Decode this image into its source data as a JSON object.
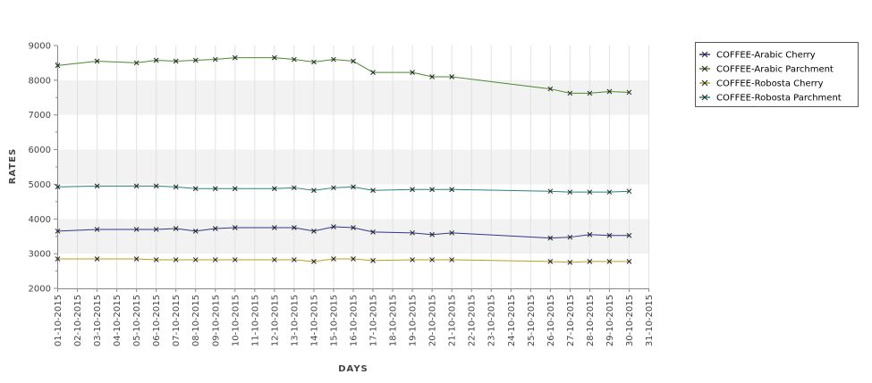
{
  "chart_data": {
    "type": "line",
    "xlabel": "DAYS",
    "ylabel": "RATES",
    "ylim": [
      2000,
      9000
    ],
    "yticks": [
      "2000",
      "3000",
      "4000",
      "5000",
      "6000",
      "7000",
      "8000",
      "9000"
    ],
    "grid": true,
    "legend": "top-right",
    "x_ticks": [
      "01-10-2015",
      "02-10-2015",
      "03-10-2015",
      "04-10-2015",
      "05-10-2015",
      "06-10-2015",
      "07-10-2015",
      "08-10-2015",
      "09-10-2015",
      "10-10-2015",
      "11-10-2015",
      "12-10-2015",
      "13-10-2015",
      "14-10-2015",
      "15-10-2015",
      "16-10-2015",
      "17-10-2015",
      "18-10-2015",
      "19-10-2015",
      "20-10-2015",
      "21-10-2015",
      "22-10-2015",
      "23-10-2015",
      "24-10-2015",
      "25-10-2015",
      "26-10-2015",
      "27-10-2015",
      "28-10-2015",
      "29-10-2015",
      "30-10-2015",
      "31-10-2015"
    ],
    "series": [
      {
        "name": "COFFEE-Arabic Cherry",
        "color": "#2b3a8c",
        "x": [
          "01-10-2015",
          "03-10-2015",
          "05-10-2015",
          "06-10-2015",
          "07-10-2015",
          "08-10-2015",
          "09-10-2015",
          "10-10-2015",
          "12-10-2015",
          "13-10-2015",
          "14-10-2015",
          "15-10-2015",
          "16-10-2015",
          "17-10-2015",
          "19-10-2015",
          "20-10-2015",
          "21-10-2015",
          "26-10-2015",
          "27-10-2015",
          "28-10-2015",
          "29-10-2015",
          "30-10-2015"
        ],
        "values": [
          3650,
          3700,
          3700,
          3700,
          3725,
          3650,
          3725,
          3750,
          3750,
          3750,
          3650,
          3775,
          3750,
          3625,
          3600,
          3550,
          3600,
          3450,
          3475,
          3550,
          3525,
          3525
        ]
      },
      {
        "name": "COFFEE-Arabic Parchment",
        "color": "#4a8a2a",
        "x": [
          "01-10-2015",
          "03-10-2015",
          "05-10-2015",
          "06-10-2015",
          "07-10-2015",
          "08-10-2015",
          "09-10-2015",
          "10-10-2015",
          "12-10-2015",
          "13-10-2015",
          "14-10-2015",
          "15-10-2015",
          "16-10-2015",
          "17-10-2015",
          "19-10-2015",
          "20-10-2015",
          "21-10-2015",
          "26-10-2015",
          "27-10-2015",
          "28-10-2015",
          "29-10-2015",
          "30-10-2015"
        ],
        "values": [
          8425,
          8550,
          8500,
          8575,
          8550,
          8575,
          8600,
          8650,
          8650,
          8600,
          8525,
          8600,
          8550,
          8225,
          8225,
          8100,
          8100,
          7750,
          7625,
          7625,
          7675,
          7650
        ]
      },
      {
        "name": "COFFEE-Robosta Cherry",
        "color": "#b8a020",
        "x": [
          "01-10-2015",
          "03-10-2015",
          "05-10-2015",
          "06-10-2015",
          "07-10-2015",
          "08-10-2015",
          "09-10-2015",
          "10-10-2015",
          "12-10-2015",
          "13-10-2015",
          "14-10-2015",
          "15-10-2015",
          "16-10-2015",
          "17-10-2015",
          "19-10-2015",
          "20-10-2015",
          "21-10-2015",
          "26-10-2015",
          "27-10-2015",
          "28-10-2015",
          "29-10-2015",
          "30-10-2015"
        ],
        "values": [
          2850,
          2850,
          2850,
          2825,
          2825,
          2825,
          2825,
          2825,
          2825,
          2825,
          2775,
          2850,
          2850,
          2800,
          2825,
          2825,
          2825,
          2775,
          2750,
          2775,
          2775,
          2775
        ]
      },
      {
        "name": "COFFEE-Robosta Parchment",
        "color": "#2a8080",
        "x": [
          "01-10-2015",
          "03-10-2015",
          "05-10-2015",
          "06-10-2015",
          "07-10-2015",
          "08-10-2015",
          "09-10-2015",
          "10-10-2015",
          "12-10-2015",
          "13-10-2015",
          "14-10-2015",
          "15-10-2015",
          "16-10-2015",
          "17-10-2015",
          "19-10-2015",
          "20-10-2015",
          "21-10-2015",
          "26-10-2015",
          "27-10-2015",
          "28-10-2015",
          "29-10-2015",
          "30-10-2015"
        ],
        "values": [
          4925,
          4950,
          4950,
          4950,
          4925,
          4875,
          4875,
          4875,
          4875,
          4900,
          4825,
          4900,
          4925,
          4825,
          4850,
          4850,
          4850,
          4800,
          4775,
          4775,
          4775,
          4800
        ]
      }
    ]
  }
}
